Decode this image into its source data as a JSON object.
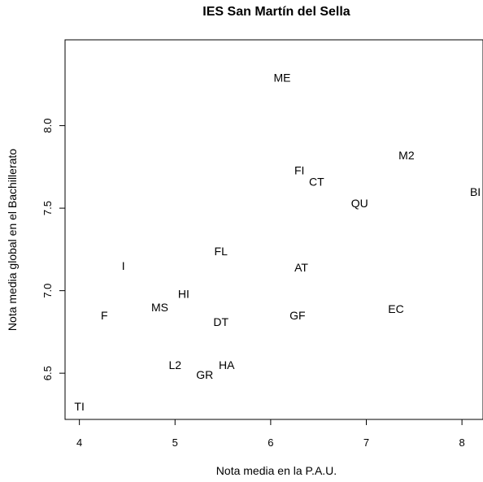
{
  "chart_data": {
    "type": "scatter",
    "title": "IES San Martín del Sella",
    "xlabel": "Nota media en la P.A.U.",
    "ylabel": "Nota media global en el Bachillerato",
    "xlim": [
      3.85,
      8.22
    ],
    "ylim": [
      6.22,
      8.52
    ],
    "x_ticks": [
      4,
      5,
      6,
      7,
      8
    ],
    "y_ticks": [
      6.5,
      7.0,
      7.5,
      8.0
    ],
    "x_tick_labels": [
      "4",
      "5",
      "6",
      "7",
      "8"
    ],
    "y_tick_labels": [
      "6.5",
      "7.0",
      "7.5",
      "8.0"
    ],
    "grid": false,
    "marker": "text",
    "points": [
      {
        "label": "ME",
        "x": 6.12,
        "y": 8.29
      },
      {
        "label": "M2",
        "x": 7.42,
        "y": 7.82
      },
      {
        "label": "FI",
        "x": 6.3,
        "y": 7.73
      },
      {
        "label": "CT",
        "x": 6.48,
        "y": 7.66
      },
      {
        "label": "BI",
        "x": 8.14,
        "y": 7.6
      },
      {
        "label": "QU",
        "x": 6.93,
        "y": 7.53
      },
      {
        "label": "FL",
        "x": 5.48,
        "y": 7.24
      },
      {
        "label": "I",
        "x": 4.46,
        "y": 7.15
      },
      {
        "label": "AT",
        "x": 6.32,
        "y": 7.14
      },
      {
        "label": "HI",
        "x": 5.09,
        "y": 6.98
      },
      {
        "label": "MS",
        "x": 4.84,
        "y": 6.9
      },
      {
        "label": "EC",
        "x": 7.31,
        "y": 6.89
      },
      {
        "label": "F",
        "x": 4.26,
        "y": 6.85
      },
      {
        "label": "GF",
        "x": 6.28,
        "y": 6.85
      },
      {
        "label": "DT",
        "x": 5.48,
        "y": 6.81
      },
      {
        "label": "L2",
        "x": 5.0,
        "y": 6.55
      },
      {
        "label": "HA",
        "x": 5.54,
        "y": 6.55
      },
      {
        "label": "GR",
        "x": 5.31,
        "y": 6.49
      },
      {
        "label": "TI",
        "x": 4.0,
        "y": 6.3
      }
    ]
  }
}
